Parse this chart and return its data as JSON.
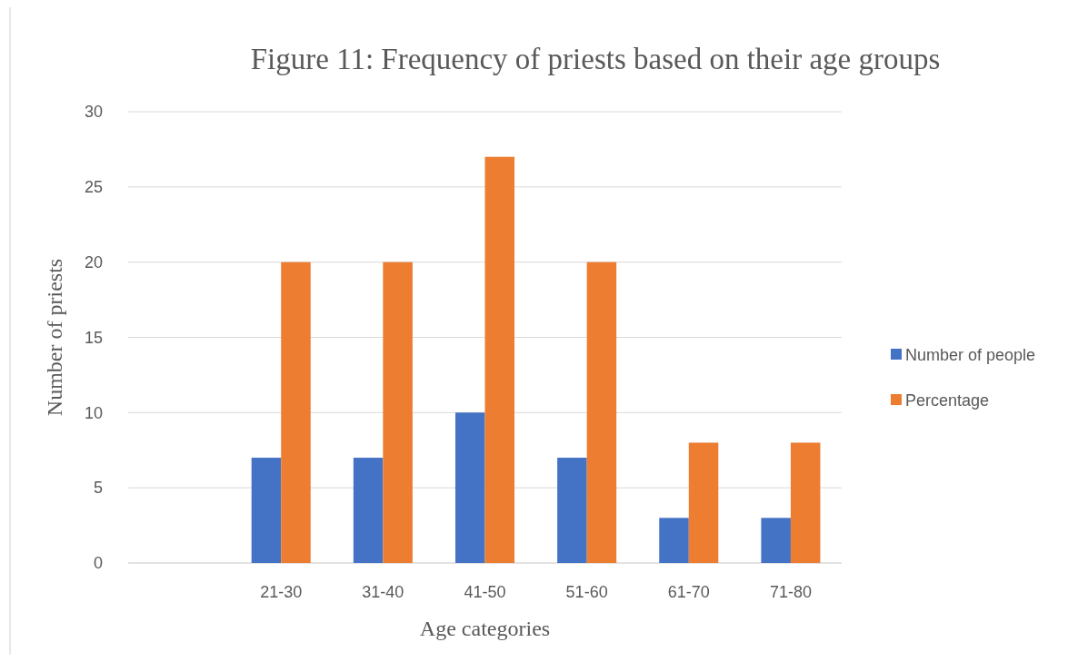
{
  "chart_data": {
    "type": "bar",
    "title": "Figure 11: Frequency of priests based on their age groups",
    "xlabel": "Age categories",
    "ylabel": "Number of priests",
    "categories": [
      null,
      "21-30",
      "31-40",
      "41-50",
      "51-60",
      "61-70",
      "71-80"
    ],
    "series": [
      {
        "name": "Number of people",
        "color": "#4472c4",
        "values": [
          null,
          7,
          7,
          10,
          7,
          3,
          3
        ]
      },
      {
        "name": "Percentage",
        "color": "#ed7d31",
        "values": [
          null,
          20,
          20,
          27,
          20,
          8,
          8
        ]
      }
    ],
    "ylim": [
      0,
      30
    ],
    "yticks": [
      0,
      5,
      10,
      15,
      20,
      25,
      30
    ],
    "grid": "y",
    "legend": "right"
  }
}
